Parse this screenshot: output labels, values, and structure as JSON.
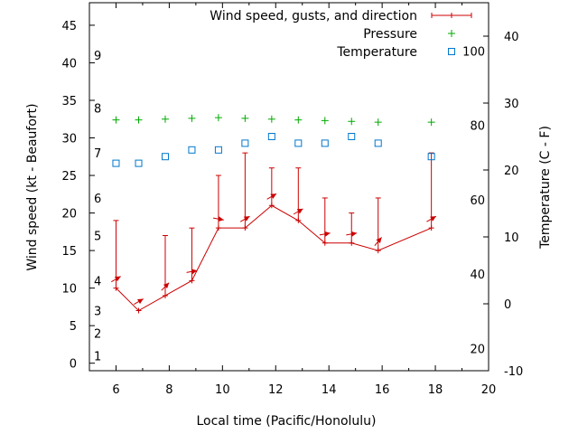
{
  "chart_data": {
    "type": "line",
    "xlabel": "Local time (Pacific/Honolulu)",
    "ylabel": "Wind speed (kt - Beaufort)",
    "y2label": "Temperature (C - F)",
    "xlim": [
      5,
      20
    ],
    "ylim": [
      -1,
      48
    ],
    "y2lim": [
      -10,
      45
    ],
    "x_ticks": [
      6,
      8,
      10,
      12,
      14,
      16,
      18,
      20
    ],
    "y_ticks": [
      0,
      5,
      10,
      15,
      20,
      25,
      30,
      35,
      40,
      45
    ],
    "y2_ticks": [
      -10,
      0,
      10,
      20,
      30,
      40
    ],
    "fahrenheit_labels": [
      20,
      40,
      60,
      80,
      100
    ],
    "beaufort_scale": [
      {
        "label": "1",
        "kt": 1
      },
      {
        "label": "2",
        "kt": 4
      },
      {
        "label": "3",
        "kt": 7
      },
      {
        "label": "4",
        "kt": 11
      },
      {
        "label": "5",
        "kt": 17
      },
      {
        "label": "6",
        "kt": 22
      },
      {
        "label": "7",
        "kt": 28
      },
      {
        "label": "8",
        "kt": 34
      },
      {
        "label": "9",
        "kt": 41
      }
    ],
    "legend_position": "top-right",
    "series": [
      {
        "name": "Wind speed, gusts, and direction",
        "color": "#cc0000",
        "x": [
          6.0,
          6.85,
          7.85,
          8.85,
          9.85,
          10.85,
          11.85,
          12.85,
          13.85,
          14.85,
          15.85,
          17.85
        ],
        "values": [
          10,
          7,
          9,
          11,
          18,
          18,
          21,
          19,
          16,
          16,
          15,
          18
        ],
        "gusts": [
          19,
          null,
          17,
          18,
          25,
          28,
          26,
          26,
          22,
          20,
          22,
          28
        ],
        "direction_deg": [
          60,
          60,
          45,
          80,
          100,
          60,
          60,
          60,
          80,
          80,
          40,
          60
        ]
      },
      {
        "name": "Pressure",
        "color": "#00aa00",
        "x": [
          6.0,
          6.85,
          7.85,
          8.85,
          9.85,
          10.85,
          11.85,
          12.85,
          13.85,
          14.85,
          15.85,
          17.85
        ],
        "values": [
          32.4,
          32.4,
          32.5,
          32.6,
          32.7,
          32.6,
          32.5,
          32.4,
          32.3,
          32.2,
          32.1,
          32.1
        ]
      },
      {
        "name": "Temperature",
        "color": "#0077cc",
        "x": [
          6.0,
          6.85,
          7.85,
          8.85,
          9.85,
          10.85,
          11.85,
          12.85,
          13.85,
          14.85,
          15.85,
          17.85
        ],
        "values_c": [
          21,
          21,
          22,
          23,
          23,
          24,
          25,
          24,
          24,
          25,
          24,
          22
        ]
      }
    ]
  }
}
